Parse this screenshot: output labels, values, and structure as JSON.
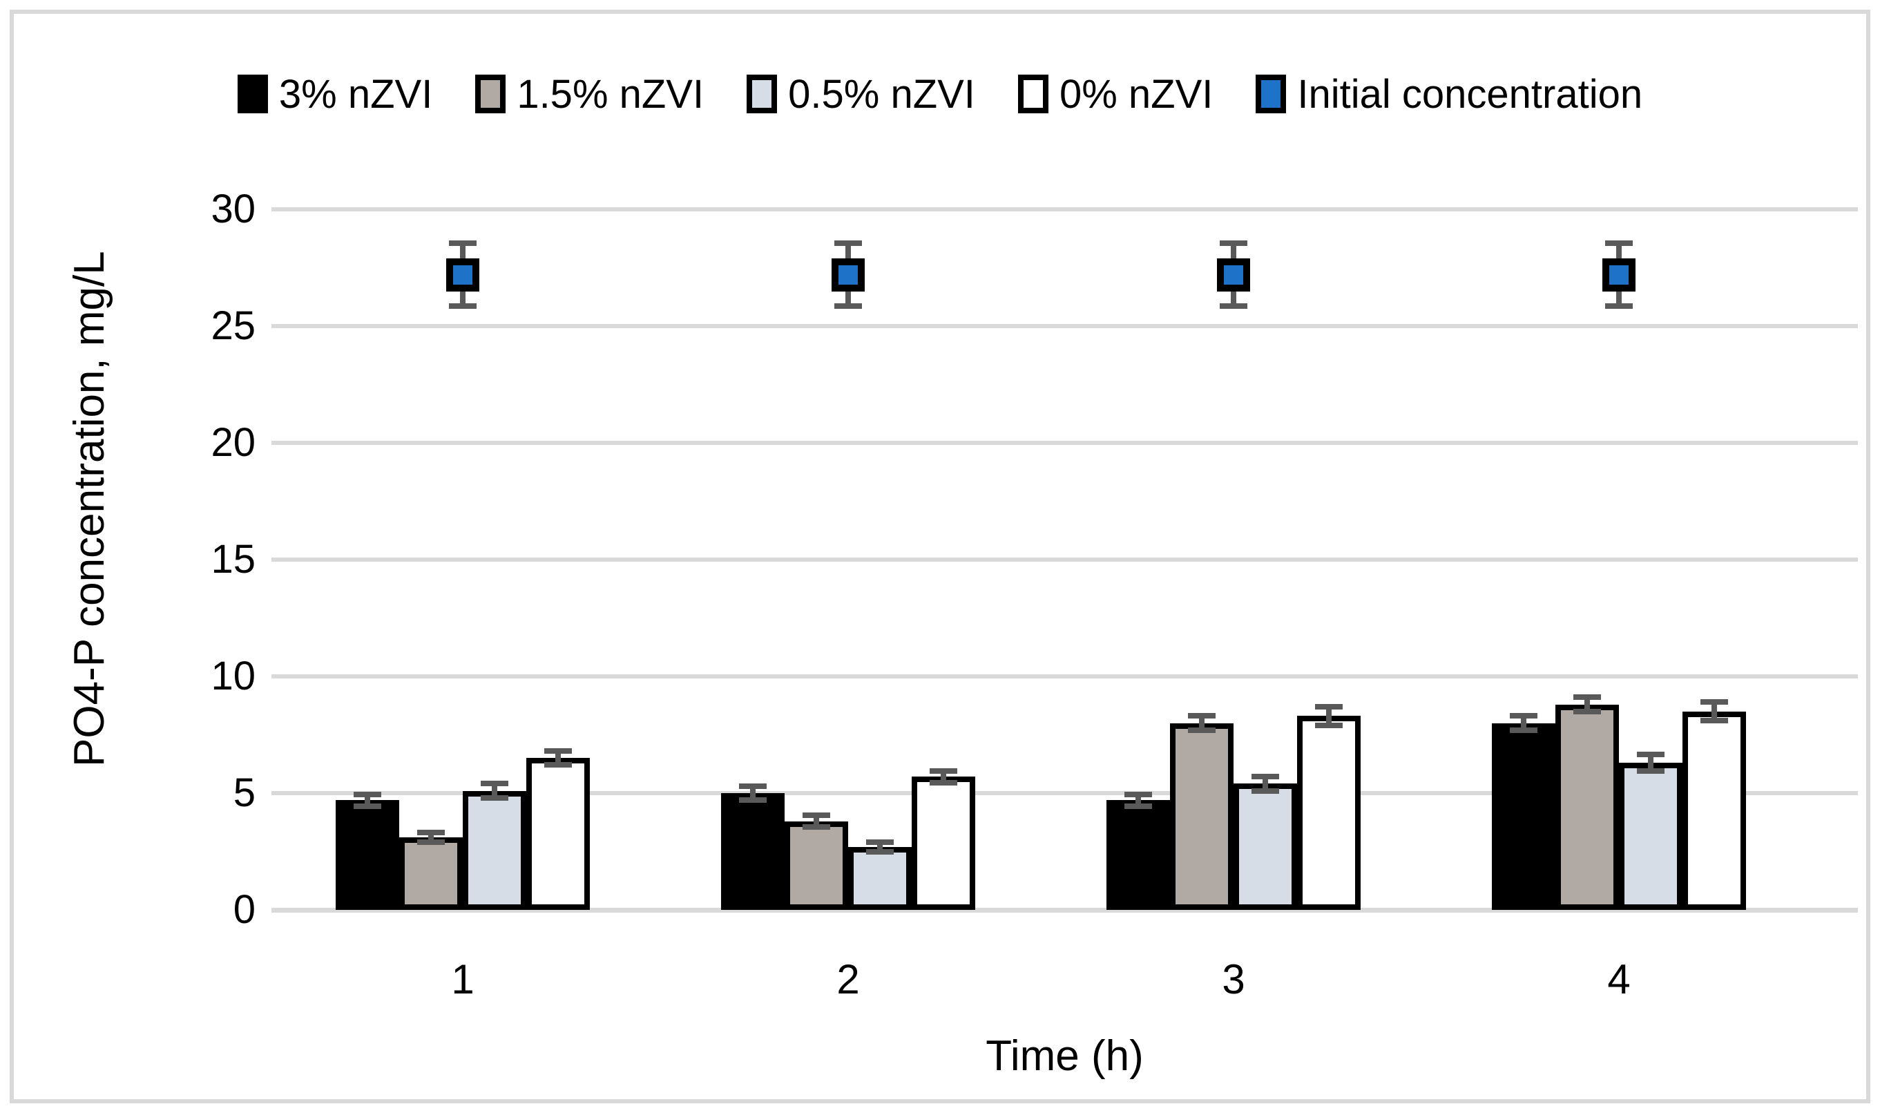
{
  "figure": {
    "background": "#ffffff",
    "border_color": "#d9d9d9"
  },
  "legend": {
    "position": "top",
    "items": [
      {
        "label": "3% nZVI",
        "swatch": "black-square-swatch",
        "fill": "#000000"
      },
      {
        "label": "1.5% nZVI",
        "swatch": "gray-square-swatch",
        "fill": "#b0a9a4"
      },
      {
        "label": "0.5% nZVI",
        "swatch": "lightblue-square-swatch",
        "fill": "#d7dde6"
      },
      {
        "label": "0% nZVI",
        "swatch": "white-square-swatch",
        "fill": "#ffffff"
      },
      {
        "label": "Initial concentration",
        "swatch": "blue-square-swatch",
        "fill": "#1e73c8"
      }
    ]
  },
  "chart_data": {
    "type": "bar",
    "title": "",
    "xlabel": "Time (h)",
    "ylabel": "PO4-P concentration, mg/L",
    "categories": [
      "1",
      "2",
      "3",
      "4"
    ],
    "ylim": [
      0,
      30
    ],
    "yticks": [
      0,
      5,
      10,
      15,
      20,
      25,
      30
    ],
    "grid": true,
    "legend_position": "top",
    "gridline_color": "#d9d9d9",
    "error_bar_color": "#595959",
    "series": [
      {
        "name": "3% nZVI",
        "type": "bar",
        "fill": "#000000",
        "values": [
          4.7,
          5.0,
          4.7,
          8.0
        ],
        "errors": [
          0.25,
          0.3,
          0.25,
          0.3
        ]
      },
      {
        "name": "1.5% nZVI",
        "type": "bar",
        "fill": "#b0a9a4",
        "values": [
          3.1,
          3.8,
          8.0,
          8.8
        ],
        "errors": [
          0.2,
          0.25,
          0.3,
          0.3
        ]
      },
      {
        "name": "0.5% nZVI",
        "type": "bar",
        "fill": "#d7dde6",
        "values": [
          5.1,
          2.7,
          5.4,
          6.3
        ],
        "errors": [
          0.3,
          0.2,
          0.3,
          0.35
        ]
      },
      {
        "name": "0% nZVI",
        "type": "bar",
        "fill": "#ffffff",
        "values": [
          6.5,
          5.7,
          8.3,
          8.5
        ],
        "errors": [
          0.3,
          0.25,
          0.4,
          0.4
        ]
      },
      {
        "name": "Initial concentration",
        "type": "scatter-square",
        "fill": "#1e73c8",
        "values": [
          27.2,
          27.2,
          27.2,
          27.2
        ],
        "errors": [
          1.35,
          1.35,
          1.35,
          1.35
        ]
      }
    ]
  }
}
